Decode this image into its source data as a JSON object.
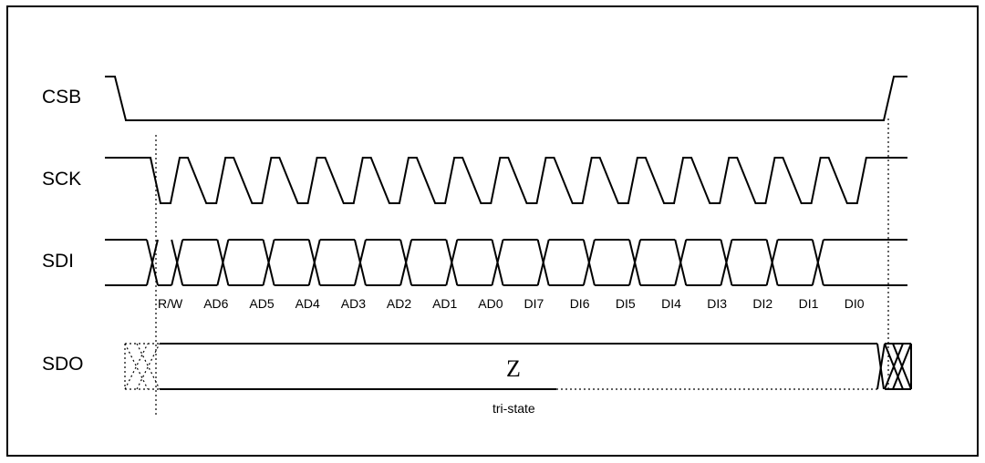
{
  "signals": {
    "csb": "CSB",
    "sck": "SCK",
    "sdi": "SDI",
    "sdo": "SDO"
  },
  "sdi_bits": [
    "R/W",
    "AD6",
    "AD5",
    "AD4",
    "AD3",
    "AD2",
    "AD1",
    "AD0",
    "DI7",
    "DI6",
    "DI5",
    "DI4",
    "DI3",
    "DI2",
    "DI1",
    "DI0"
  ],
  "sdo": {
    "state": "Z",
    "caption": "tri-state"
  }
}
